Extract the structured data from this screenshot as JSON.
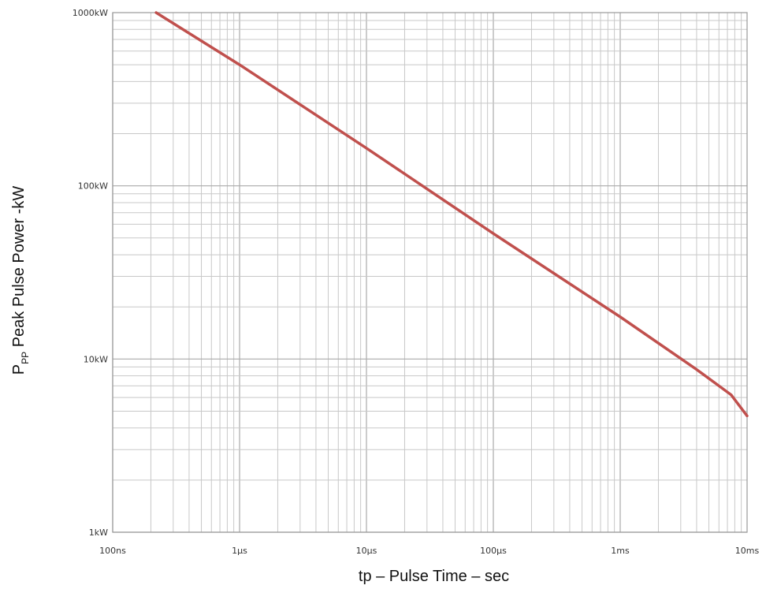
{
  "chart_data": {
    "type": "line",
    "xlabel": "tp – Pulse Time – sec",
    "ylabel": {
      "main": "P",
      "subscript": "PP",
      "rest": " Peak Pulse Power -kW"
    },
    "x_scale": "log",
    "y_scale": "log",
    "xlim": [
      "100ns",
      "10ms"
    ],
    "ylim": [
      "1kW",
      "1000kW"
    ],
    "x_ticks": [
      {
        "label": "100ns",
        "seconds": 1e-07
      },
      {
        "label": "1µs",
        "seconds": 1e-06
      },
      {
        "label": "10µs",
        "seconds": 1e-05
      },
      {
        "label": "100µs",
        "seconds": 0.0001
      },
      {
        "label": "1ms",
        "seconds": 0.001
      },
      {
        "label": "10ms",
        "seconds": 0.01
      }
    ],
    "y_ticks": [
      {
        "label": "1kW",
        "kw": 1
      },
      {
        "label": "10kW",
        "kw": 10
      },
      {
        "label": "100kW",
        "kw": 100
      },
      {
        "label": "1000kW",
        "kw": 1000
      }
    ],
    "grid": true,
    "series": [
      {
        "color": "#c0504d",
        "points": [
          {
            "t": 2.2e-07,
            "kw": 1000
          },
          {
            "t": 1e-06,
            "kw": 500
          },
          {
            "t": 1e-05,
            "kw": 165
          },
          {
            "t": 0.0001,
            "kw": 53
          },
          {
            "t": 0.001,
            "kw": 17.5
          },
          {
            "t": 0.004,
            "kw": 8.7
          },
          {
            "t": 0.006,
            "kw": 7.0
          },
          {
            "t": 0.0075,
            "kw": 6.2
          },
          {
            "t": 0.009,
            "kw": 5.2
          },
          {
            "t": 0.01,
            "kw": 4.7
          }
        ]
      }
    ]
  },
  "colors": {
    "grid": "#c8c8c8",
    "axis": "#999999",
    "series": "#c0504d"
  }
}
